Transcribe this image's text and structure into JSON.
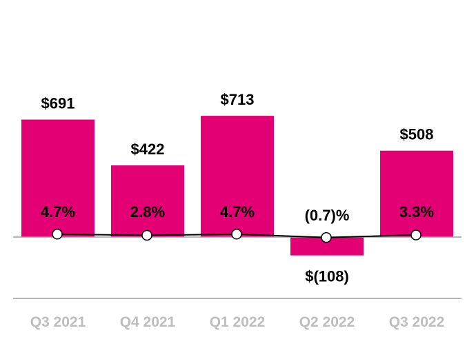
{
  "chart_data": {
    "type": "bar",
    "categories": [
      "Q3 2021",
      "Q4 2021",
      "Q1 2022",
      "Q2 2022",
      "Q3 2022"
    ],
    "series": [
      {
        "values": [
          691,
          422,
          713,
          -108,
          508
        ],
        "labels": [
          "$691",
          "$422",
          "$713",
          "$(108)",
          "$508"
        ],
        "color": "#E20074"
      },
      {
        "type": "line",
        "values": [
          4.7,
          2.8,
          4.7,
          -0.7,
          3.3
        ],
        "labels": [
          "4.7%",
          "2.8%",
          "4.7%",
          "(0.7)%",
          "3.3%"
        ],
        "color": "#000000"
      }
    ],
    "title": "",
    "xlabel": "",
    "ylabel": "",
    "ylim": [
      -145,
      950
    ],
    "grid": false,
    "legend": "none"
  },
  "colors": {
    "bar": "#E20074",
    "line": "#000000",
    "axis": "#9e9e9e",
    "category_text": "#bdbdbd",
    "label_text": "#000000"
  }
}
